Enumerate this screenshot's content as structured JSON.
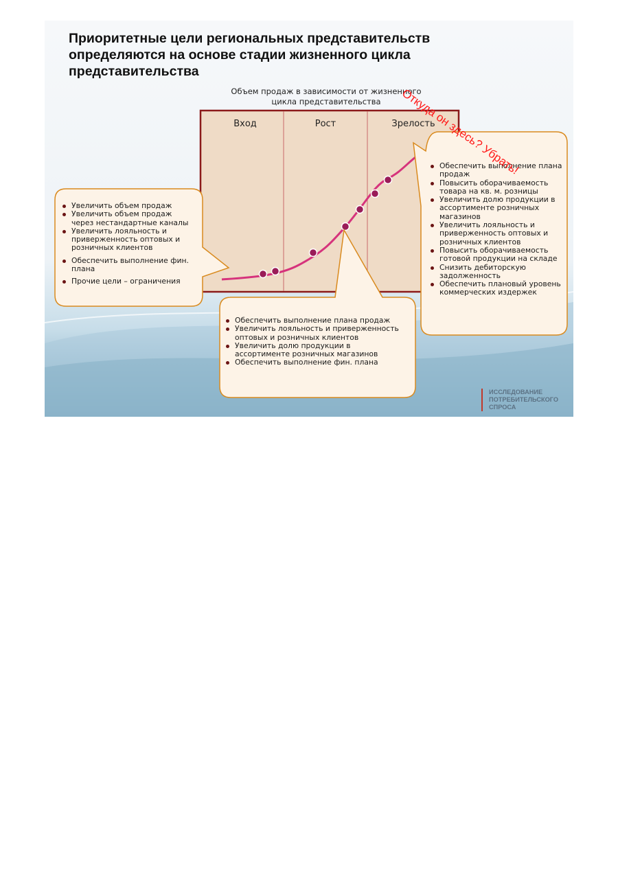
{
  "title_lines": [
    "Приоритетные цели региональных представительств",
    "определяются на основе  стадии жизненного цикла",
    "представительства"
  ],
  "chart": {
    "caption_lines": [
      "Объем продаж в зависимости от жизненного",
      "цикла представительства"
    ],
    "stages": [
      "Вход",
      "Рост",
      "Зрелость"
    ],
    "colors": {
      "frame": "#8b1a1a",
      "fill": "#efdbc6",
      "curve": "#d6337c",
      "points": "#9a1c58",
      "bubble_border": "#d98a1e",
      "bubble_fill": "#fdf3e7"
    }
  },
  "bubbles": {
    "entry": [
      "Увеличить объем продаж",
      "Увеличить объем продаж через нестандартные каналы",
      "Увеличить лояльность и приверженность оптовых и розничных клиентов",
      "Обеспечить выполнение фин. плана",
      "Прочие цели – ограничения"
    ],
    "growth": [
      "Обеспечить выполнение плана продаж",
      "Увеличить лояльность и приверженность оптовых и розничных клиентов",
      "Увеличить долю продукции в ассортименте розничных магазинов",
      "Обеспечить выполнение фин. плана"
    ],
    "maturity": [
      "Обеспечить выполнение плана продаж",
      "Повысить оборачиваемость товара на кв. м. розницы",
      "Увеличить долю продукции в ассортименте розничных магазинов",
      "Увеличить лояльность и приверженность оптовых и розничных клиентов",
      "Повысить оборачиваемость готовой продукции на складе",
      "Снизить дебиторскую задолженность",
      "Обеспечить плановый уровень коммерческих издержек"
    ]
  },
  "annotation": "Откуда он здесь? Убрать!",
  "brand_lines": [
    "ИССЛЕДОВАНИЕ",
    "ПОТРЕБИТЕЛЬСКОГО",
    "СПРОСА"
  ]
}
